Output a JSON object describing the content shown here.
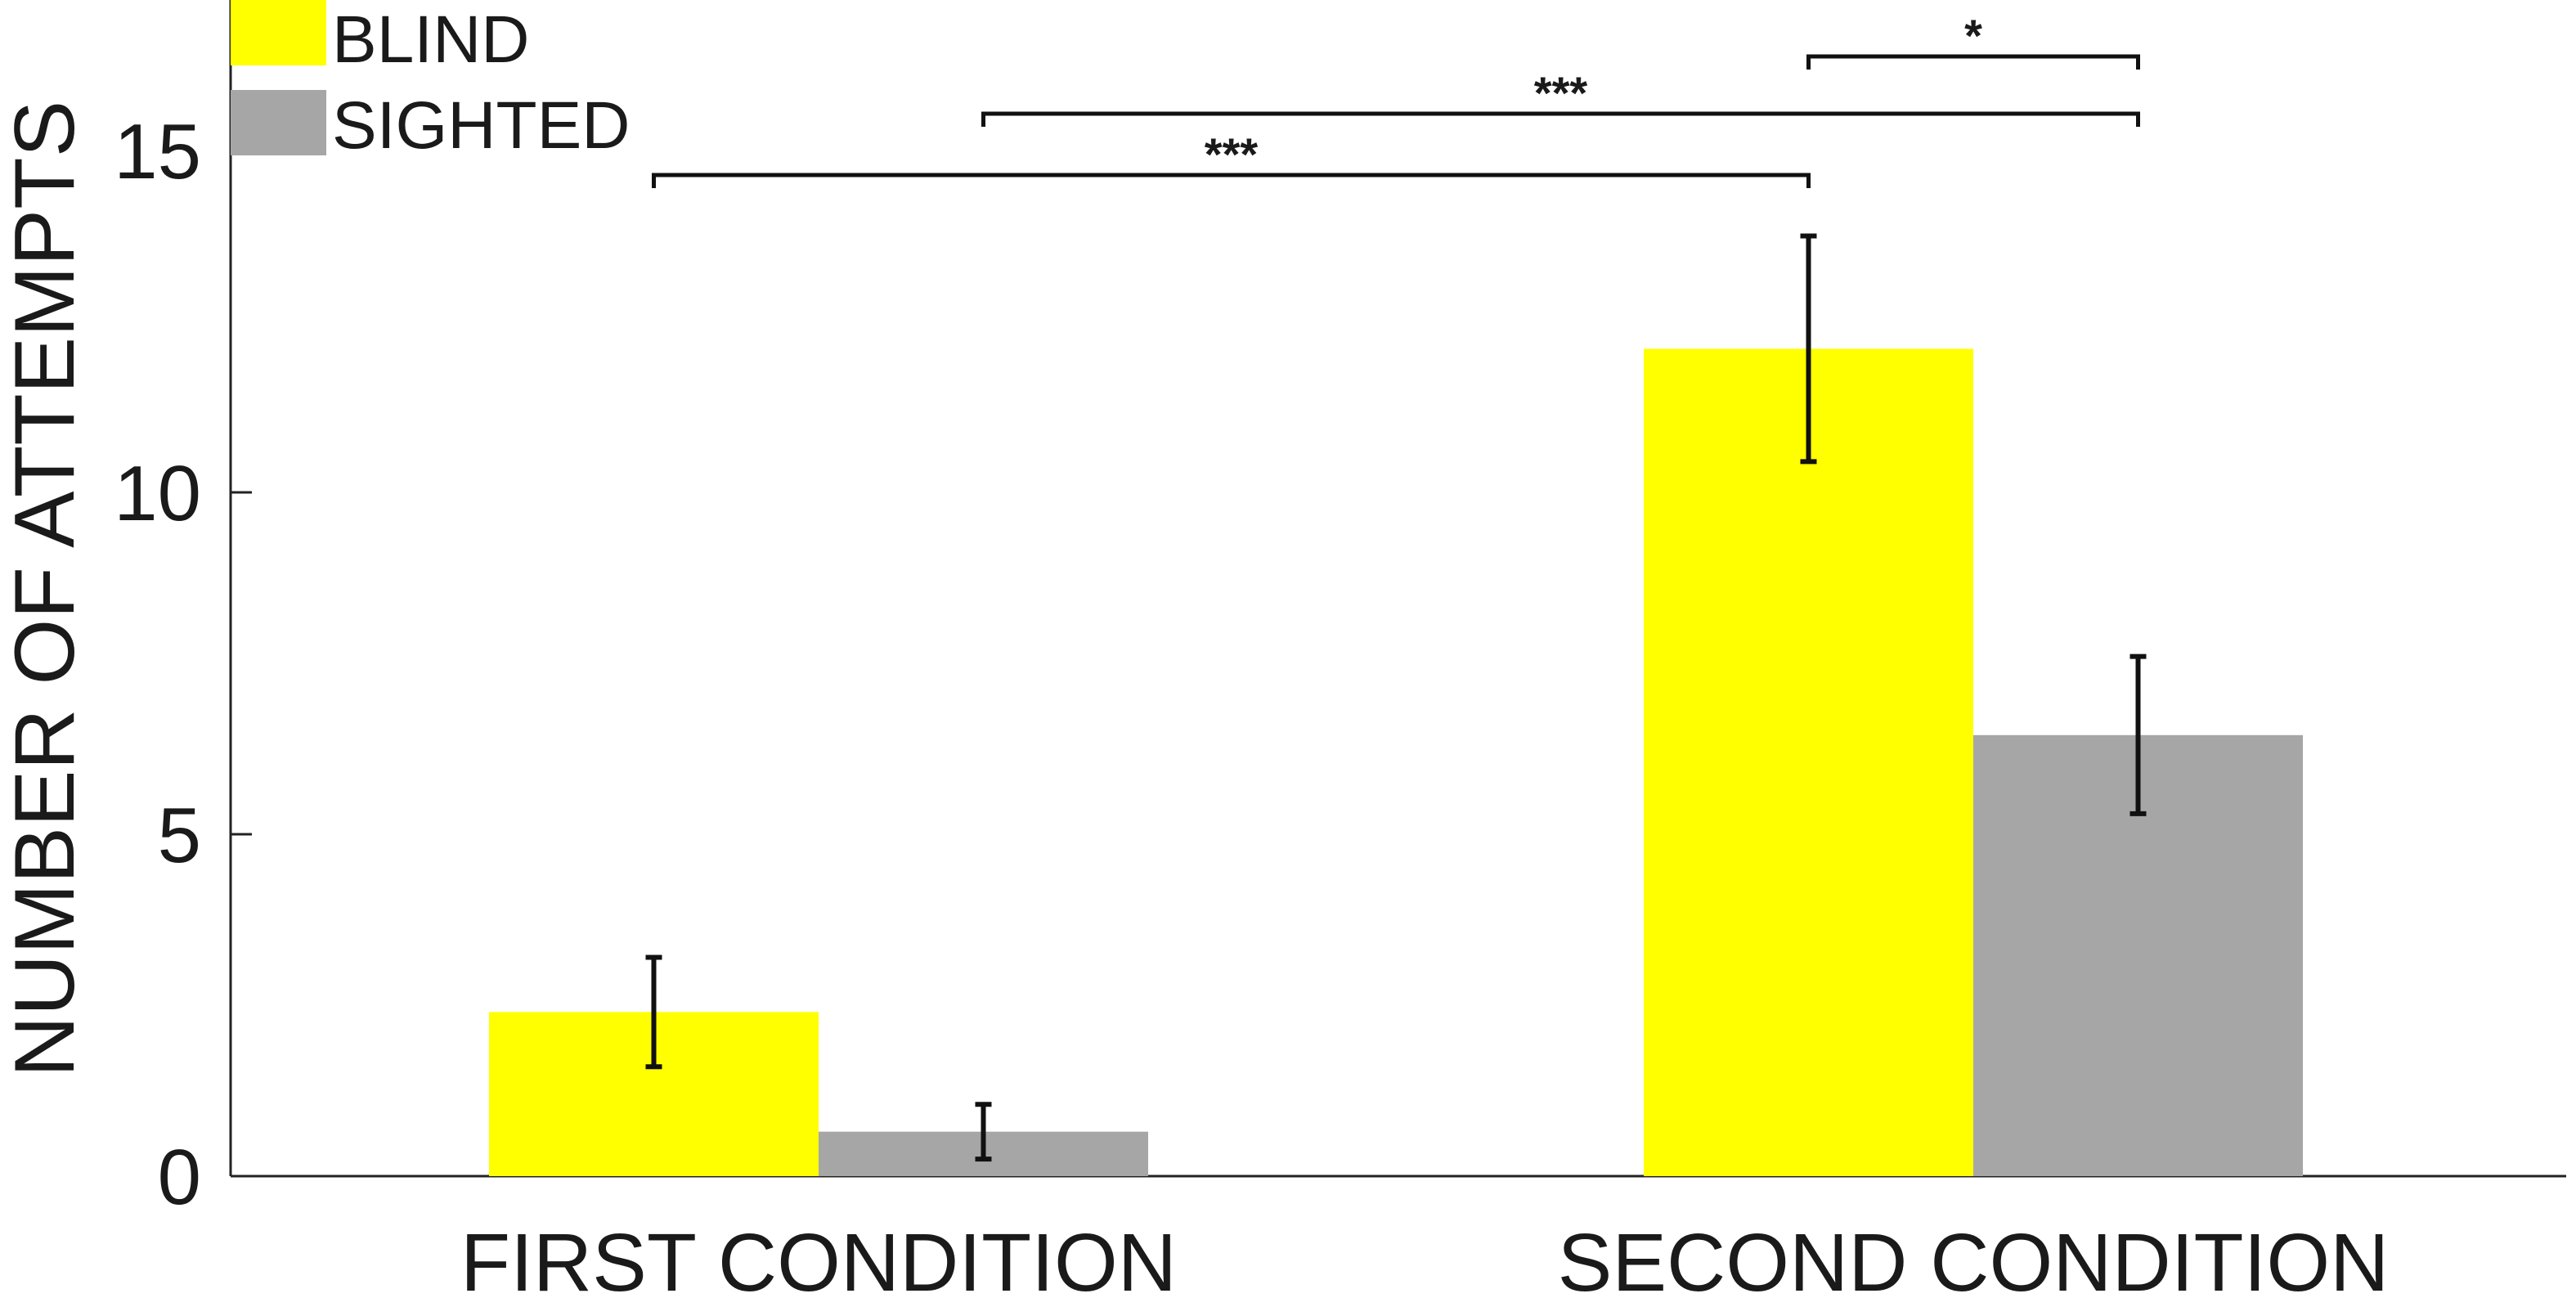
{
  "chart_data": {
    "type": "bar",
    "categories": [
      "FIRST CONDITION",
      "SECOND CONDITION"
    ],
    "series": [
      {
        "name": "BLIND",
        "color": "#ffff00",
        "values": [
          2.4,
          12.1
        ],
        "error": [
          0.8,
          1.65
        ]
      },
      {
        "name": "SIGHTED",
        "color": "#a6a6a6",
        "values": [
          0.65,
          6.45
        ],
        "error": [
          0.4,
          1.15
        ]
      }
    ],
    "ylabel": "NUMBER OF ATTEMPTS",
    "xlabel": "",
    "ylim": [
      0,
      17
    ],
    "yticks": [
      0,
      5,
      10,
      15
    ],
    "legend": "top-left",
    "grid": false,
    "significance": [
      {
        "from": "FIRST CONDITION / BLIND",
        "to": "SECOND CONDITION / BLIND",
        "label": "***"
      },
      {
        "from": "FIRST CONDITION / SIGHTED",
        "to": "SECOND CONDITION / SIGHTED",
        "label": "***"
      },
      {
        "from": "SECOND CONDITION / BLIND",
        "to": "SECOND CONDITION / SIGHTED",
        "label": "*"
      }
    ]
  }
}
